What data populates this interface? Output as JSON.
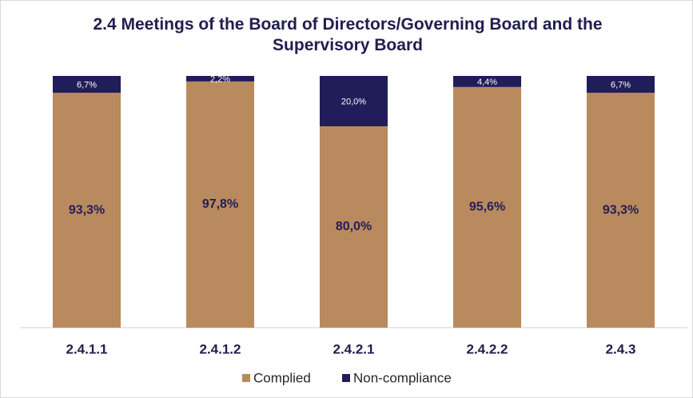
{
  "chart_data": {
    "type": "stacked_bar",
    "title": "2.4 Meetings of the Board of Directors/Governing Board and the Supervisory Board",
    "categories": [
      "2.4.1.1",
      "2.4.1.2",
      "2.4.2.1",
      "2.4.2.2",
      "2.4.3"
    ],
    "series": [
      {
        "name": "Complied",
        "color": "#b98a5e",
        "values": [
          93.3,
          97.8,
          80.0,
          95.6,
          93.3
        ],
        "value_labels": [
          "93,3%",
          "97,8%",
          "80,0%",
          "95,6%",
          "93,3%"
        ]
      },
      {
        "name": "Non-compliance",
        "color": "#211d5a",
        "values": [
          6.7,
          2.2,
          20.0,
          4.4,
          6.7
        ],
        "value_labels": [
          "6,7%",
          "2,2%",
          "20,0%",
          "4,4%",
          "6,7%"
        ]
      }
    ],
    "ylim": [
      0,
      100
    ],
    "legend": "bottom"
  }
}
